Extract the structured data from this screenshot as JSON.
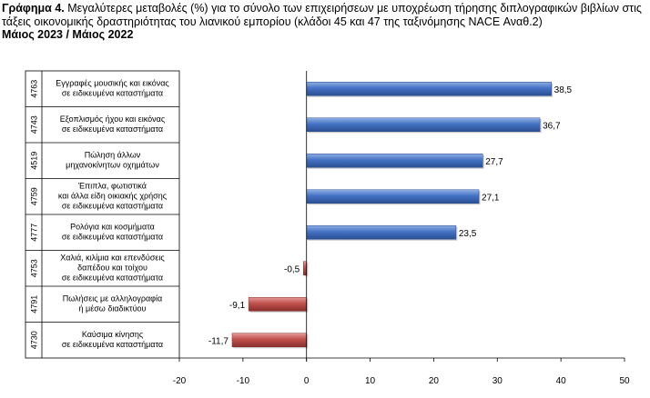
{
  "header": {
    "figure_label": "Γράφημα 4.",
    "title_text": "Μεγαλύτερες μεταβολές (%) για το σύνολο των επιχειρήσεων με υποχρέωση τήρησης διπλογραφικών βιβλίων στις τάξεις οικονομικής δραστηριότητας του λιανικού εμπορίου (κλάδοι 45 και 47 της ταξινόμησης NACE Αναθ.2)",
    "subtitle": "Μάιος 2023 / Μάιος 2022"
  },
  "chart_data": {
    "type": "bar",
    "orientation": "horizontal",
    "title": "Γράφημα 4. Μεγαλύτερες μεταβολές (%) για το σύνολο των επιχειρήσεων με υποχρέωση τήρησης διπλογραφικών βιβλίων στις τάξεις οικονομικής δραστηριότητας του λιανικού εμπορίου (κλάδοι 45 και 47 της ταξινόμησης NACE Αναθ.2)",
    "subtitle": "Μάιος 2023 / Μάιος 2022",
    "xlim": [
      -20,
      50
    ],
    "x_ticks": [
      -20,
      -10,
      0,
      10,
      20,
      30,
      40,
      50
    ],
    "grid": false,
    "legend": "none",
    "positive_color": "#4472c4",
    "negative_color": "#c0504d",
    "categories": [
      {
        "code": "4763",
        "lines": [
          "Εγγραφές μουσικής και εικόνας",
          "σε ειδικευμένα καταστήματα"
        ],
        "value": 38.5,
        "label": "38,5"
      },
      {
        "code": "4743",
        "lines": [
          "Εξοπλισμός ήχου και εικόνας",
          "σε ειδικευμένα καταστήματα"
        ],
        "value": 36.7,
        "label": "36,7"
      },
      {
        "code": "4519",
        "lines": [
          "Πώληση άλλων",
          "μηχανοκίνητων οχημάτων"
        ],
        "value": 27.7,
        "label": "27,7"
      },
      {
        "code": "4759",
        "lines": [
          "Έπιπλα, φωτιστικά",
          "και άλλα είδη οικιακής χρήσης",
          "σε ειδικευμένα καταστήματα"
        ],
        "value": 27.1,
        "label": "27,1"
      },
      {
        "code": "4777",
        "lines": [
          "Ρολόγια και κοσμήματα",
          "σε ειδικευμένα καταστήματα"
        ],
        "value": 23.5,
        "label": "23,5"
      },
      {
        "code": "4753",
        "lines": [
          "Χαλιά, κιλίμια και επενδύσεις",
          "δαπέδου και τοίχου",
          "σε ειδικευμένα καταστήματα"
        ],
        "value": -0.5,
        "label": "-0,5"
      },
      {
        "code": "4791",
        "lines": [
          "Πωλήσεις με αλληλογραφία",
          "ή μέσω διαδικτύου"
        ],
        "value": -9.1,
        "label": "-9,1"
      },
      {
        "code": "4730",
        "lines": [
          "Καύσιμα κίνησης",
          "σε ειδικευμένα καταστήματα"
        ],
        "value": -11.7,
        "label": "-11,7"
      }
    ]
  }
}
